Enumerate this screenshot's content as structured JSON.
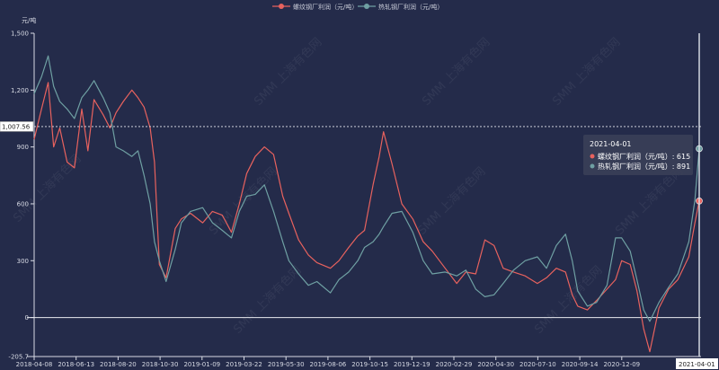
{
  "chart_data": {
    "type": "line",
    "y_unit": "元/吨",
    "ylim": [
      -205.7,
      1500
    ],
    "y_ticks": [
      -205.7,
      0,
      300,
      600,
      900,
      1200,
      1500
    ],
    "y_tick_labels": [
      "-205.7",
      "0",
      "300",
      "600",
      "900",
      "1,200",
      "1,500"
    ],
    "x_start": "2018-04-08",
    "x_end": "2021-04-01",
    "x_tick_labels": [
      "2018-04-08",
      "2018-06-13",
      "2018-08-20",
      "2018-10-30",
      "2019-01-09",
      "2019-03-22",
      "2019-05-30",
      "2019-08-06",
      "2019-10-15",
      "2019-12-19",
      "2020-02-29",
      "2020-04-30",
      "2020-07-10",
      "2020-09-14",
      "2020-12-09",
      "2021-04-01"
    ],
    "reference_line": {
      "value": 1007.56,
      "label": "1,007.56"
    },
    "grid": false,
    "legend_position": "top-center",
    "watermark": "SMM 上海有色网",
    "series": [
      {
        "name": "螺纹钢厂利润（元/吨）",
        "color": "#e8625e",
        "points": [
          [
            "2018-04-08",
            940
          ],
          [
            "2018-04-20",
            1100
          ],
          [
            "2018-05-01",
            1240
          ],
          [
            "2018-05-10",
            900
          ],
          [
            "2018-05-20",
            1000
          ],
          [
            "2018-06-01",
            820
          ],
          [
            "2018-06-13",
            790
          ],
          [
            "2018-06-25",
            1100
          ],
          [
            "2018-07-05",
            880
          ],
          [
            "2018-07-15",
            1150
          ],
          [
            "2018-07-30",
            1070
          ],
          [
            "2018-08-10",
            1000
          ],
          [
            "2018-08-20",
            1080
          ],
          [
            "2018-09-01",
            1140
          ],
          [
            "2018-09-15",
            1200
          ],
          [
            "2018-09-25",
            1160
          ],
          [
            "2018-10-05",
            1110
          ],
          [
            "2018-10-15",
            1000
          ],
          [
            "2018-10-22",
            820
          ],
          [
            "2018-10-30",
            280
          ],
          [
            "2018-11-10",
            210
          ],
          [
            "2018-11-25",
            470
          ],
          [
            "2018-12-05",
            520
          ],
          [
            "2018-12-20",
            550
          ],
          [
            "2019-01-09",
            500
          ],
          [
            "2019-01-25",
            560
          ],
          [
            "2019-02-10",
            540
          ],
          [
            "2019-02-25",
            450
          ],
          [
            "2019-03-10",
            600
          ],
          [
            "2019-03-22",
            760
          ],
          [
            "2019-04-05",
            850
          ],
          [
            "2019-04-20",
            900
          ],
          [
            "2019-05-05",
            860
          ],
          [
            "2019-05-20",
            640
          ],
          [
            "2019-05-30",
            550
          ],
          [
            "2019-06-15",
            410
          ],
          [
            "2019-07-01",
            330
          ],
          [
            "2019-07-15",
            290
          ],
          [
            "2019-08-06",
            260
          ],
          [
            "2019-08-20",
            300
          ],
          [
            "2019-09-05",
            370
          ],
          [
            "2019-09-20",
            430
          ],
          [
            "2019-10-01",
            460
          ],
          [
            "2019-10-15",
            700
          ],
          [
            "2019-10-25",
            850
          ],
          [
            "2019-11-01",
            980
          ],
          [
            "2019-11-15",
            810
          ],
          [
            "2019-12-01",
            600
          ],
          [
            "2019-12-19",
            520
          ],
          [
            "2020-01-05",
            400
          ],
          [
            "2020-01-20",
            350
          ],
          [
            "2020-02-10",
            260
          ],
          [
            "2020-02-29",
            180
          ],
          [
            "2020-03-15",
            240
          ],
          [
            "2020-03-31",
            230
          ],
          [
            "2020-04-15",
            410
          ],
          [
            "2020-04-30",
            380
          ],
          [
            "2020-05-15",
            260
          ],
          [
            "2020-06-01",
            240
          ],
          [
            "2020-06-20",
            220
          ],
          [
            "2020-07-10",
            180
          ],
          [
            "2020-07-25",
            210
          ],
          [
            "2020-08-10",
            260
          ],
          [
            "2020-08-25",
            240
          ],
          [
            "2020-09-05",
            120
          ],
          [
            "2020-09-14",
            60
          ],
          [
            "2020-09-30",
            40
          ],
          [
            "2020-10-15",
            90
          ],
          [
            "2020-11-01",
            150
          ],
          [
            "2020-11-15",
            200
          ],
          [
            "2020-11-25",
            300
          ],
          [
            "2020-12-09",
            280
          ],
          [
            "2020-12-20",
            140
          ],
          [
            "2020-12-31",
            -60
          ],
          [
            "2021-01-10",
            -180
          ],
          [
            "2021-01-25",
            50
          ],
          [
            "2021-02-10",
            150
          ],
          [
            "2021-02-25",
            200
          ],
          [
            "2021-03-15",
            320
          ],
          [
            "2021-03-25",
            500
          ],
          [
            "2021-04-01",
            615
          ]
        ]
      },
      {
        "name": "热轧钢厂利润（元/吨）",
        "color": "#6fa0a3",
        "points": [
          [
            "2018-04-08",
            1180
          ],
          [
            "2018-04-20",
            1270
          ],
          [
            "2018-05-01",
            1380
          ],
          [
            "2018-05-10",
            1220
          ],
          [
            "2018-05-20",
            1140
          ],
          [
            "2018-06-01",
            1100
          ],
          [
            "2018-06-13",
            1050
          ],
          [
            "2018-06-25",
            1160
          ],
          [
            "2018-07-05",
            1200
          ],
          [
            "2018-07-15",
            1250
          ],
          [
            "2018-07-30",
            1160
          ],
          [
            "2018-08-10",
            1080
          ],
          [
            "2018-08-20",
            900
          ],
          [
            "2018-09-01",
            880
          ],
          [
            "2018-09-15",
            850
          ],
          [
            "2018-09-25",
            880
          ],
          [
            "2018-10-05",
            750
          ],
          [
            "2018-10-15",
            600
          ],
          [
            "2018-10-22",
            400
          ],
          [
            "2018-10-30",
            300
          ],
          [
            "2018-11-10",
            190
          ],
          [
            "2018-11-25",
            360
          ],
          [
            "2018-12-05",
            500
          ],
          [
            "2018-12-20",
            560
          ],
          [
            "2019-01-09",
            580
          ],
          [
            "2019-01-25",
            500
          ],
          [
            "2019-02-10",
            460
          ],
          [
            "2019-02-25",
            420
          ],
          [
            "2019-03-10",
            560
          ],
          [
            "2019-03-22",
            640
          ],
          [
            "2019-04-05",
            650
          ],
          [
            "2019-04-20",
            700
          ],
          [
            "2019-05-05",
            560
          ],
          [
            "2019-05-20",
            400
          ],
          [
            "2019-05-30",
            300
          ],
          [
            "2019-06-15",
            230
          ],
          [
            "2019-07-01",
            170
          ],
          [
            "2019-07-15",
            190
          ],
          [
            "2019-08-06",
            130
          ],
          [
            "2019-08-20",
            200
          ],
          [
            "2019-09-05",
            240
          ],
          [
            "2019-09-20",
            300
          ],
          [
            "2019-10-01",
            370
          ],
          [
            "2019-10-15",
            400
          ],
          [
            "2019-10-25",
            440
          ],
          [
            "2019-11-01",
            480
          ],
          [
            "2019-11-15",
            550
          ],
          [
            "2019-12-01",
            560
          ],
          [
            "2019-12-19",
            450
          ],
          [
            "2020-01-05",
            300
          ],
          [
            "2020-01-20",
            230
          ],
          [
            "2020-02-10",
            240
          ],
          [
            "2020-02-29",
            220
          ],
          [
            "2020-03-15",
            250
          ],
          [
            "2020-03-31",
            150
          ],
          [
            "2020-04-15",
            110
          ],
          [
            "2020-04-30",
            120
          ],
          [
            "2020-05-15",
            180
          ],
          [
            "2020-06-01",
            250
          ],
          [
            "2020-06-20",
            300
          ],
          [
            "2020-07-10",
            320
          ],
          [
            "2020-07-25",
            260
          ],
          [
            "2020-08-10",
            380
          ],
          [
            "2020-08-25",
            440
          ],
          [
            "2020-09-05",
            300
          ],
          [
            "2020-09-14",
            140
          ],
          [
            "2020-09-30",
            60
          ],
          [
            "2020-10-15",
            80
          ],
          [
            "2020-11-01",
            170
          ],
          [
            "2020-11-15",
            420
          ],
          [
            "2020-11-25",
            420
          ],
          [
            "2020-12-09",
            350
          ],
          [
            "2020-12-20",
            200
          ],
          [
            "2020-12-31",
            40
          ],
          [
            "2021-01-10",
            -20
          ],
          [
            "2021-01-25",
            80
          ],
          [
            "2021-02-10",
            160
          ],
          [
            "2021-02-25",
            230
          ],
          [
            "2021-03-15",
            400
          ],
          [
            "2021-03-25",
            620
          ],
          [
            "2021-04-01",
            891
          ]
        ]
      }
    ],
    "tooltip": {
      "date": "2021-04-01",
      "rows": [
        "螺纹钢厂利润（元/吨）: 615",
        "热轧钢厂利润（元/吨）: 891"
      ]
    }
  }
}
